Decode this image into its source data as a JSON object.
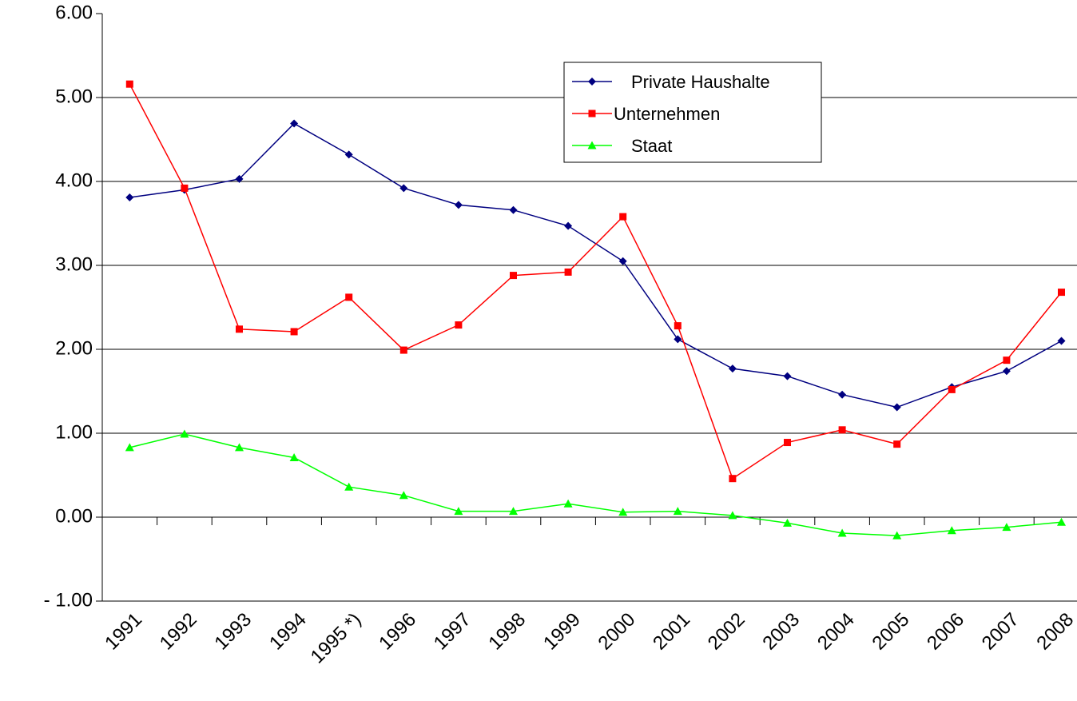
{
  "chart_data": {
    "type": "line",
    "categories": [
      "1991",
      "1992",
      "1993",
      "1994",
      "1995 *)",
      "1996",
      "1997",
      "1998",
      "1999",
      "2000",
      "2001",
      "2002",
      "2003",
      "2004",
      "2005",
      "2006",
      "2007",
      "2008"
    ],
    "series": [
      {
        "name": "Private Haushalte",
        "color": "#000080",
        "marker": "diamond",
        "values": [
          3.81,
          3.9,
          4.03,
          4.69,
          4.32,
          3.92,
          3.72,
          3.66,
          3.47,
          3.05,
          2.12,
          1.77,
          1.68,
          1.46,
          1.31,
          1.55,
          1.74,
          2.1
        ]
      },
      {
        "name": "Unternehmen",
        "color": "#ff0000",
        "marker": "square",
        "values": [
          5.16,
          3.92,
          2.24,
          2.21,
          2.62,
          1.99,
          2.29,
          2.88,
          2.92,
          3.58,
          2.28,
          0.46,
          0.89,
          1.04,
          0.87,
          1.52,
          1.87,
          2.68
        ]
      },
      {
        "name": "Staat",
        "color": "#00ff00",
        "marker": "triangle",
        "values": [
          0.83,
          0.99,
          0.83,
          0.71,
          0.36,
          0.26,
          0.07,
          0.07,
          0.16,
          0.06,
          0.07,
          0.02,
          -0.07,
          -0.19,
          -0.22,
          -0.16,
          -0.12,
          -0.06
        ]
      }
    ],
    "ylim": [
      -1,
      6
    ],
    "yticks": [
      {
        "value": -1,
        "label": "- 1.00"
      },
      {
        "value": 0,
        "label": "0.00"
      },
      {
        "value": 1,
        "label": "1.00"
      },
      {
        "value": 2,
        "label": "2.00"
      },
      {
        "value": 3,
        "label": "3.00"
      },
      {
        "value": 4,
        "label": "4.00"
      },
      {
        "value": 5,
        "label": "5.00"
      },
      {
        "value": 6,
        "label": "6.00"
      }
    ],
    "grid": true,
    "legend": "upper right"
  }
}
